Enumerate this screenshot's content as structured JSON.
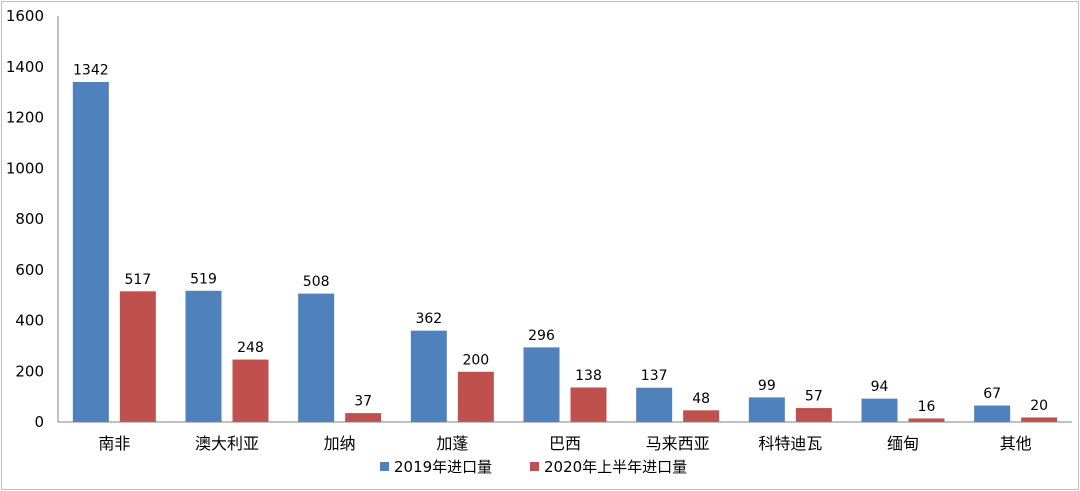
{
  "chart_data": {
    "type": "bar",
    "categories": [
      "南非",
      "澳大利亚",
      "加纳",
      "加蓬",
      "巴西",
      "马来西亚",
      "科特迪瓦",
      "缅甸",
      "其他"
    ],
    "series": [
      {
        "name": "2019年进口量",
        "values": [
          1342,
          519,
          508,
          362,
          296,
          137,
          99,
          94,
          67
        ],
        "color": "#4f81bd"
      },
      {
        "name": "2020年上半年进口量",
        "values": [
          517,
          248,
          37,
          200,
          138,
          48,
          57,
          16,
          20
        ],
        "color": "#c0504d"
      }
    ],
    "ylim": [
      0,
      1600
    ],
    "yticks": [
      0,
      200,
      400,
      600,
      800,
      1000,
      1200,
      1400,
      1600
    ],
    "grid": false,
    "legend": "bottom-center",
    "data_labels": true
  }
}
